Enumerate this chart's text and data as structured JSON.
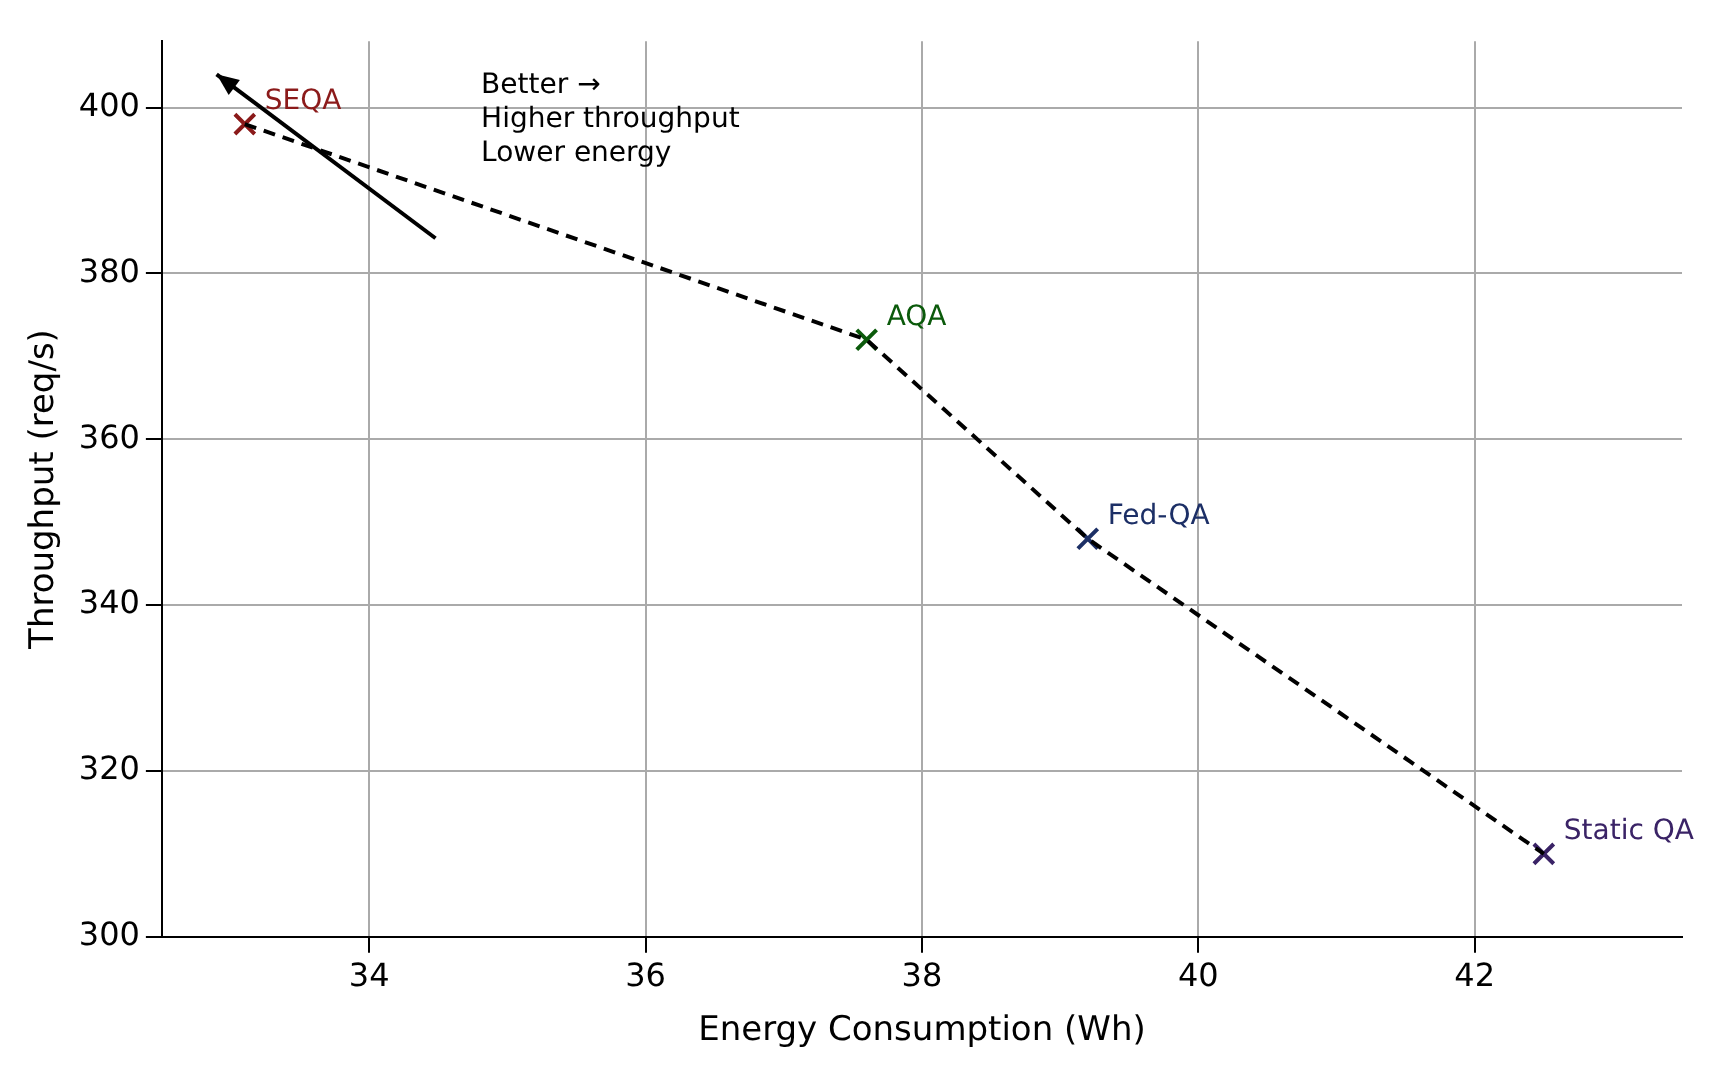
{
  "chart_data": {
    "type": "scatter",
    "xlabel": "Energy Consumption (Wh)",
    "ylabel": "Throughput (req/s)",
    "xlim": [
      32.5,
      43.5
    ],
    "xticks": [
      34,
      36,
      38,
      40,
      42
    ],
    "ylim": [
      300,
      408
    ],
    "yticks": [
      300,
      320,
      340,
      360,
      380,
      400
    ],
    "grid": true,
    "legend": false,
    "marker": "cross",
    "series": [
      {
        "type": "line",
        "line_style": "dashed",
        "marker": "none",
        "color": "#000000",
        "x": [
          33.1,
          37.6,
          39.2,
          42.5
        ],
        "values": [
          398,
          372,
          348,
          310
        ]
      },
      {
        "name": "SEQA",
        "color": "#8b1a1a",
        "x": [
          33.1
        ],
        "values": [
          398
        ]
      },
      {
        "name": "AQA",
        "color": "#0b5a0b",
        "x": [
          37.6
        ],
        "values": [
          372
        ]
      },
      {
        "name": "Fed-QA",
        "color": "#1c2f66",
        "x": [
          39.2
        ],
        "values": [
          348
        ]
      },
      {
        "name": "Static QA",
        "color": "#3a2366",
        "x": [
          42.5
        ],
        "values": [
          310
        ]
      }
    ],
    "annotations": [
      "Better →\nHigher throughput\nLower energy"
    ]
  }
}
